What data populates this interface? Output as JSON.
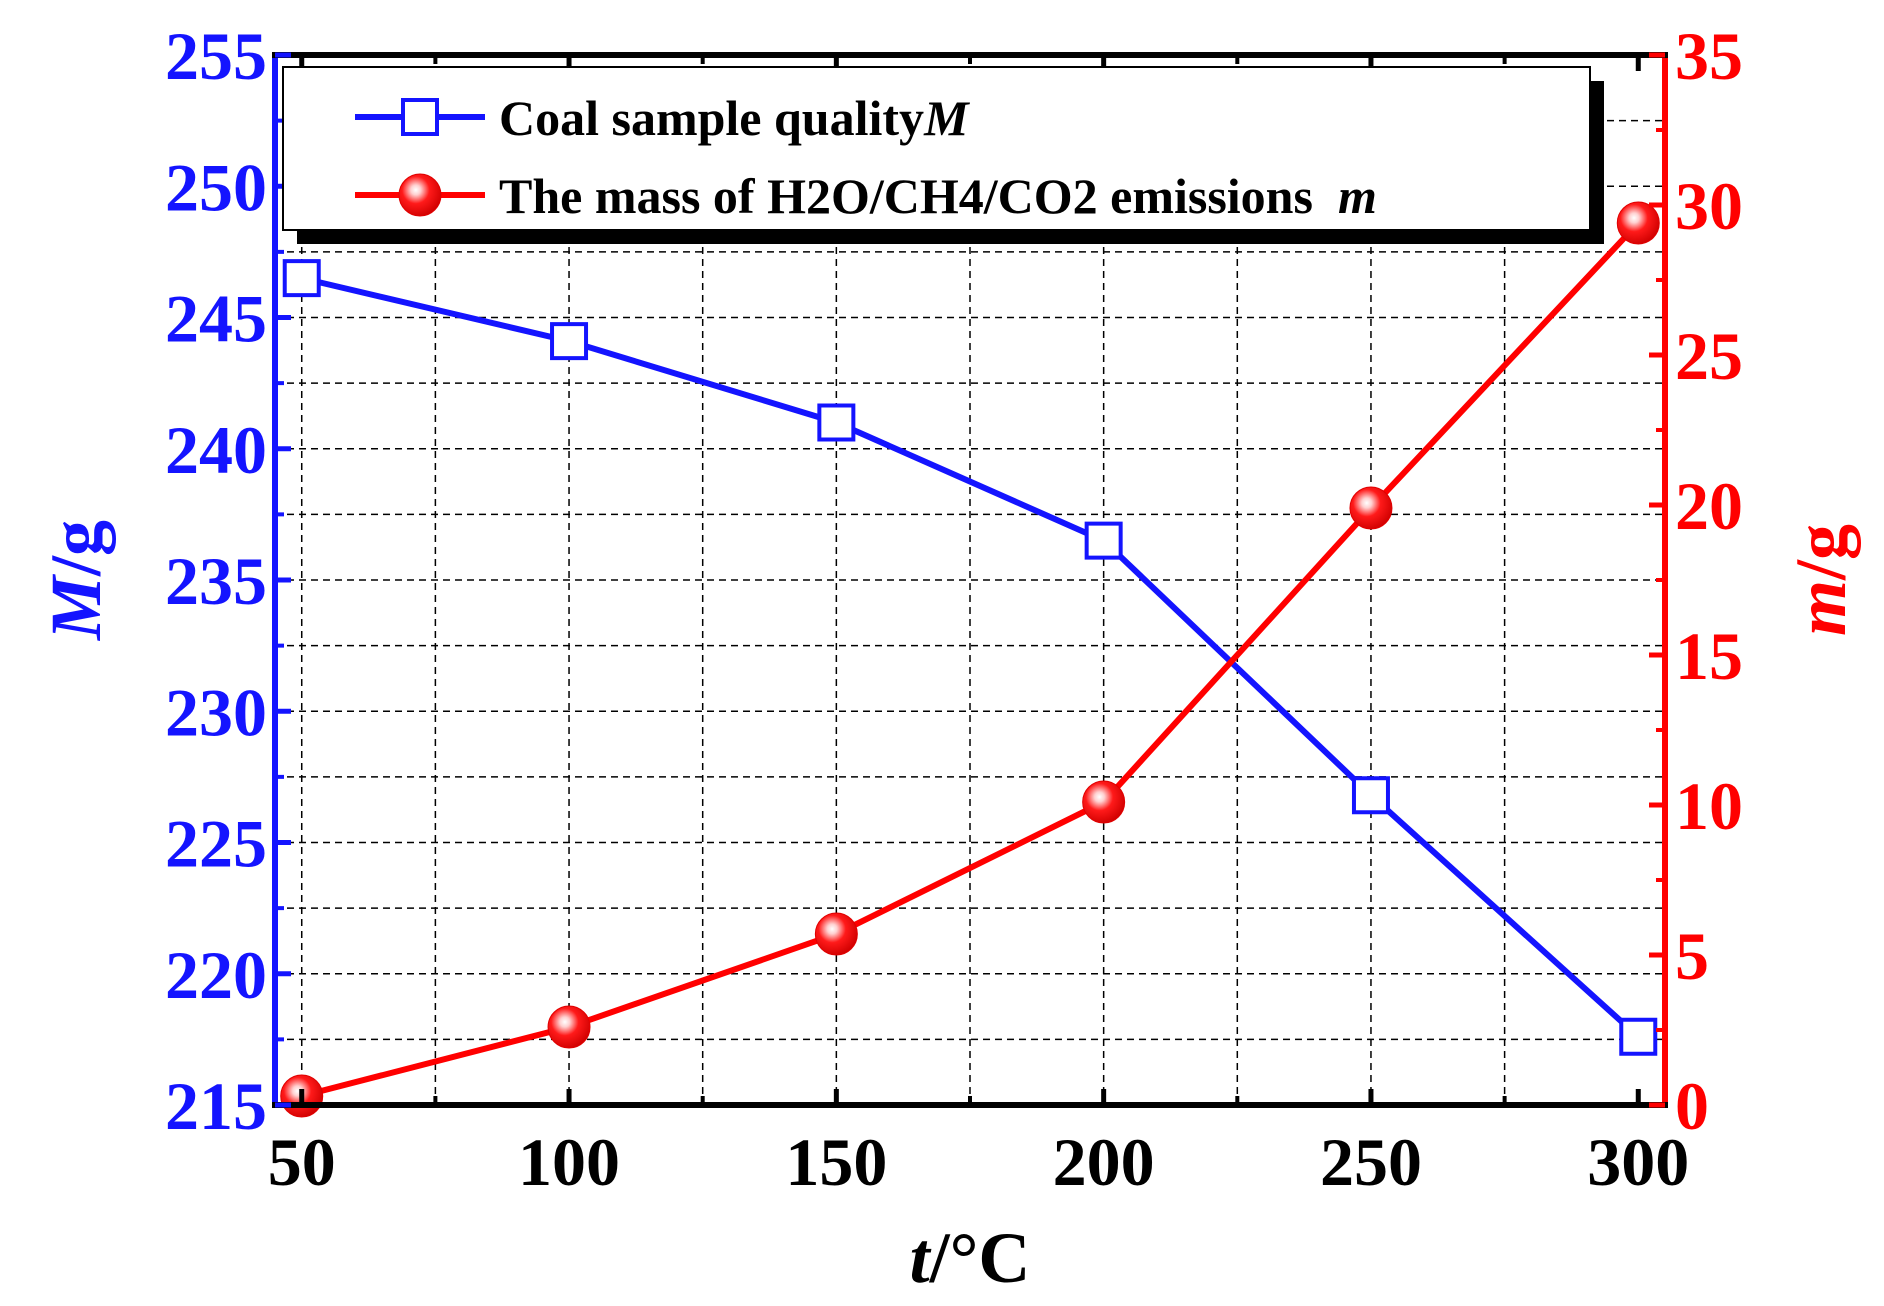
{
  "chart_data": {
    "type": "line",
    "x": [
      50,
      100,
      150,
      200,
      250,
      300
    ],
    "xlim": [
      45,
      305
    ],
    "xticks": [
      "50",
      "100",
      "150",
      "200",
      "250",
      "300"
    ],
    "xlabel_italic": "t",
    "xlabel_rest": "/°C",
    "y_left": {
      "label_italic": "M",
      "label_rest": "/g",
      "lim": [
        215,
        255
      ],
      "ticks": [
        "215",
        "220",
        "225",
        "230",
        "235",
        "240",
        "245",
        "250",
        "255"
      ],
      "color": "#1414ff"
    },
    "y_right": {
      "label_italic": "m",
      "label_rest": "/g",
      "lim": [
        0,
        35
      ],
      "ticks": [
        "0",
        "5",
        "10",
        "15",
        "20",
        "25",
        "30",
        "35"
      ],
      "color": "#ff0000"
    },
    "series": [
      {
        "name": "Coal sample quality",
        "name_italic": "M",
        "axis": "left",
        "marker": "open-square",
        "color": "#1414ff",
        "values": [
          246.5,
          244.1,
          241.0,
          236.5,
          226.8,
          217.6
        ]
      },
      {
        "name": "The mass of H2O/CH4/CO2 emissions  ",
        "name_italic": "m",
        "axis": "right",
        "marker": "filled-sphere",
        "color": "#ff0000",
        "values": [
          0.3,
          2.6,
          5.7,
          10.1,
          19.9,
          29.4
        ]
      }
    ],
    "grid": true,
    "legend_position": "top"
  }
}
